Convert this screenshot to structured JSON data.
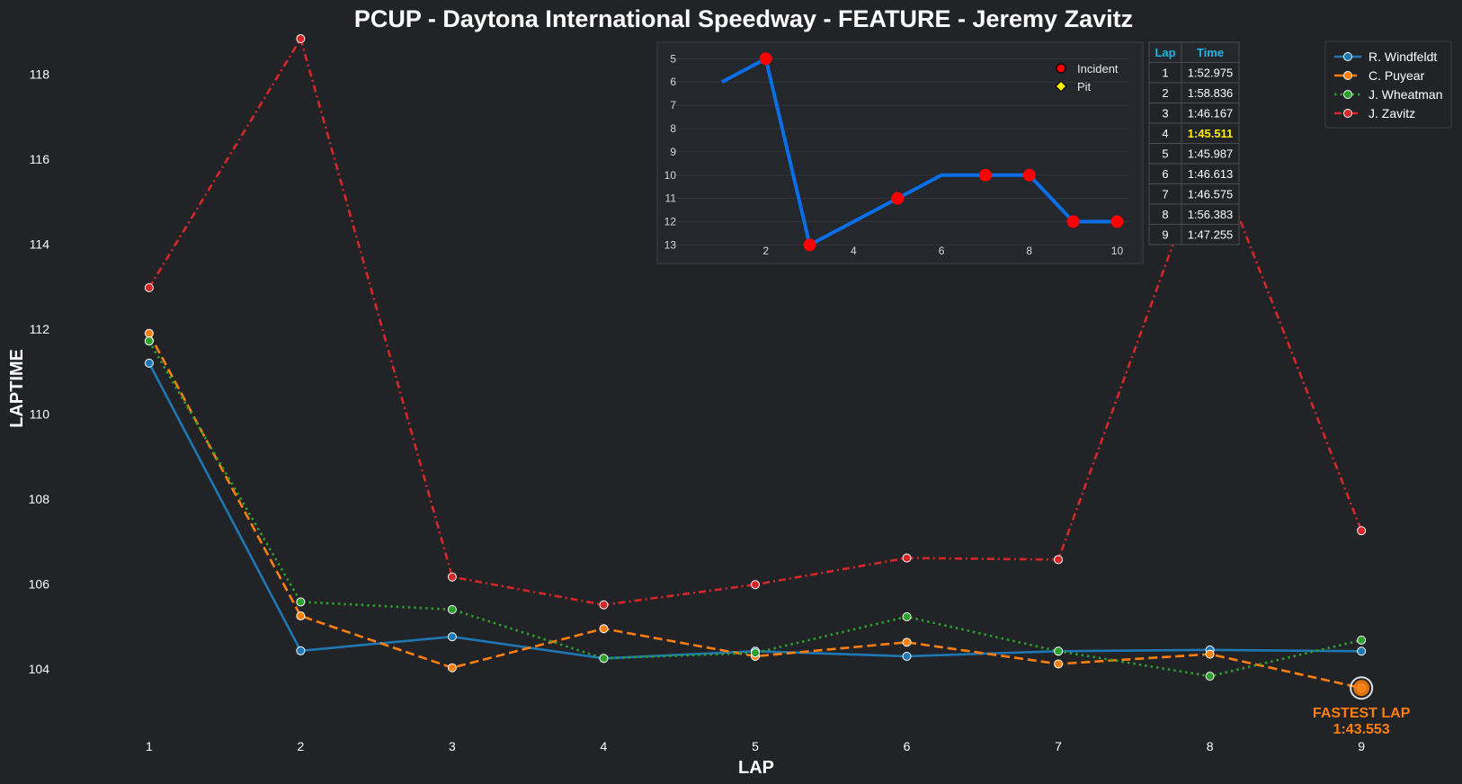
{
  "chart_data": [
    {
      "type": "line",
      "title": "PCUP - Daytona International Speedway - FEATURE - Jeremy Zavitz",
      "xlabel": "LAP",
      "ylabel": "LAPTIME",
      "x": [
        1,
        2,
        3,
        4,
        5,
        6,
        7,
        8,
        9
      ],
      "xlim": [
        0.55,
        9.45
      ],
      "ylim": [
        102.5,
        118.9
      ],
      "yticks": [
        104,
        106,
        108,
        110,
        112,
        114,
        116,
        118
      ],
      "grid": false,
      "legend_position": "top-right",
      "series": [
        {
          "name": "R. Windfeldt",
          "color": "#1f77b4",
          "style": "solid",
          "values": [
            111.2,
            104.43,
            104.76,
            104.25,
            104.42,
            104.3,
            104.42,
            104.45,
            104.42
          ]
        },
        {
          "name": "C. Puyear",
          "color": "#ff7f0e",
          "style": "dashed",
          "values": [
            111.9,
            105.25,
            104.03,
            104.95,
            104.3,
            104.63,
            104.12,
            104.35,
            103.553
          ]
        },
        {
          "name": "J. Wheatman",
          "color": "#2ca02c",
          "style": "dotted",
          "values": [
            111.72,
            105.58,
            105.4,
            104.25,
            104.38,
            105.23,
            104.42,
            103.83,
            104.68
          ]
        },
        {
          "name": "J. Zavitz",
          "color": "#d62728",
          "style": "dashdot",
          "values": [
            112.975,
            118.836,
            106.167,
            105.511,
            105.987,
            106.613,
            106.575,
            116.383,
            107.255
          ]
        }
      ],
      "annotation": {
        "x": 9,
        "y": 103.553,
        "label": "FASTEST LAP",
        "value": "1:43.553",
        "color": "#ff7f0e"
      }
    },
    {
      "type": "line",
      "title": "",
      "x": [
        1,
        2,
        3,
        4,
        5,
        6,
        7,
        8,
        9,
        10
      ],
      "values": [
        6,
        5,
        13,
        12,
        11,
        10,
        10,
        10,
        12,
        12
      ],
      "incident_x": [
        2,
        3,
        5,
        7,
        8,
        9,
        10
      ],
      "pit_x": [],
      "xticks": [
        2,
        4,
        6,
        8,
        10
      ],
      "yticks": [
        5,
        6,
        7,
        8,
        9,
        10,
        11,
        12,
        13
      ],
      "xlim": [
        0.0,
        10.4
      ],
      "ylim_inverted": [
        4.6,
        13.1
      ],
      "grid": true,
      "line_color": "#0a6ee6",
      "legend": [
        {
          "label": "Incident",
          "marker": "circle",
          "color": "#ff0000"
        },
        {
          "label": "Pit",
          "marker": "diamond",
          "color": "#ffee00"
        }
      ]
    },
    {
      "type": "table",
      "columns": [
        "Lap",
        "Time"
      ],
      "best_lap": 4,
      "rows": [
        [
          "1",
          "1:52.975"
        ],
        [
          "2",
          "1:58.836"
        ],
        [
          "3",
          "1:46.167"
        ],
        [
          "4",
          "1:45.511"
        ],
        [
          "5",
          "1:45.987"
        ],
        [
          "6",
          "1:46.613"
        ],
        [
          "7",
          "1:46.575"
        ],
        [
          "8",
          "1:56.383"
        ],
        [
          "9",
          "1:47.255"
        ]
      ]
    }
  ]
}
